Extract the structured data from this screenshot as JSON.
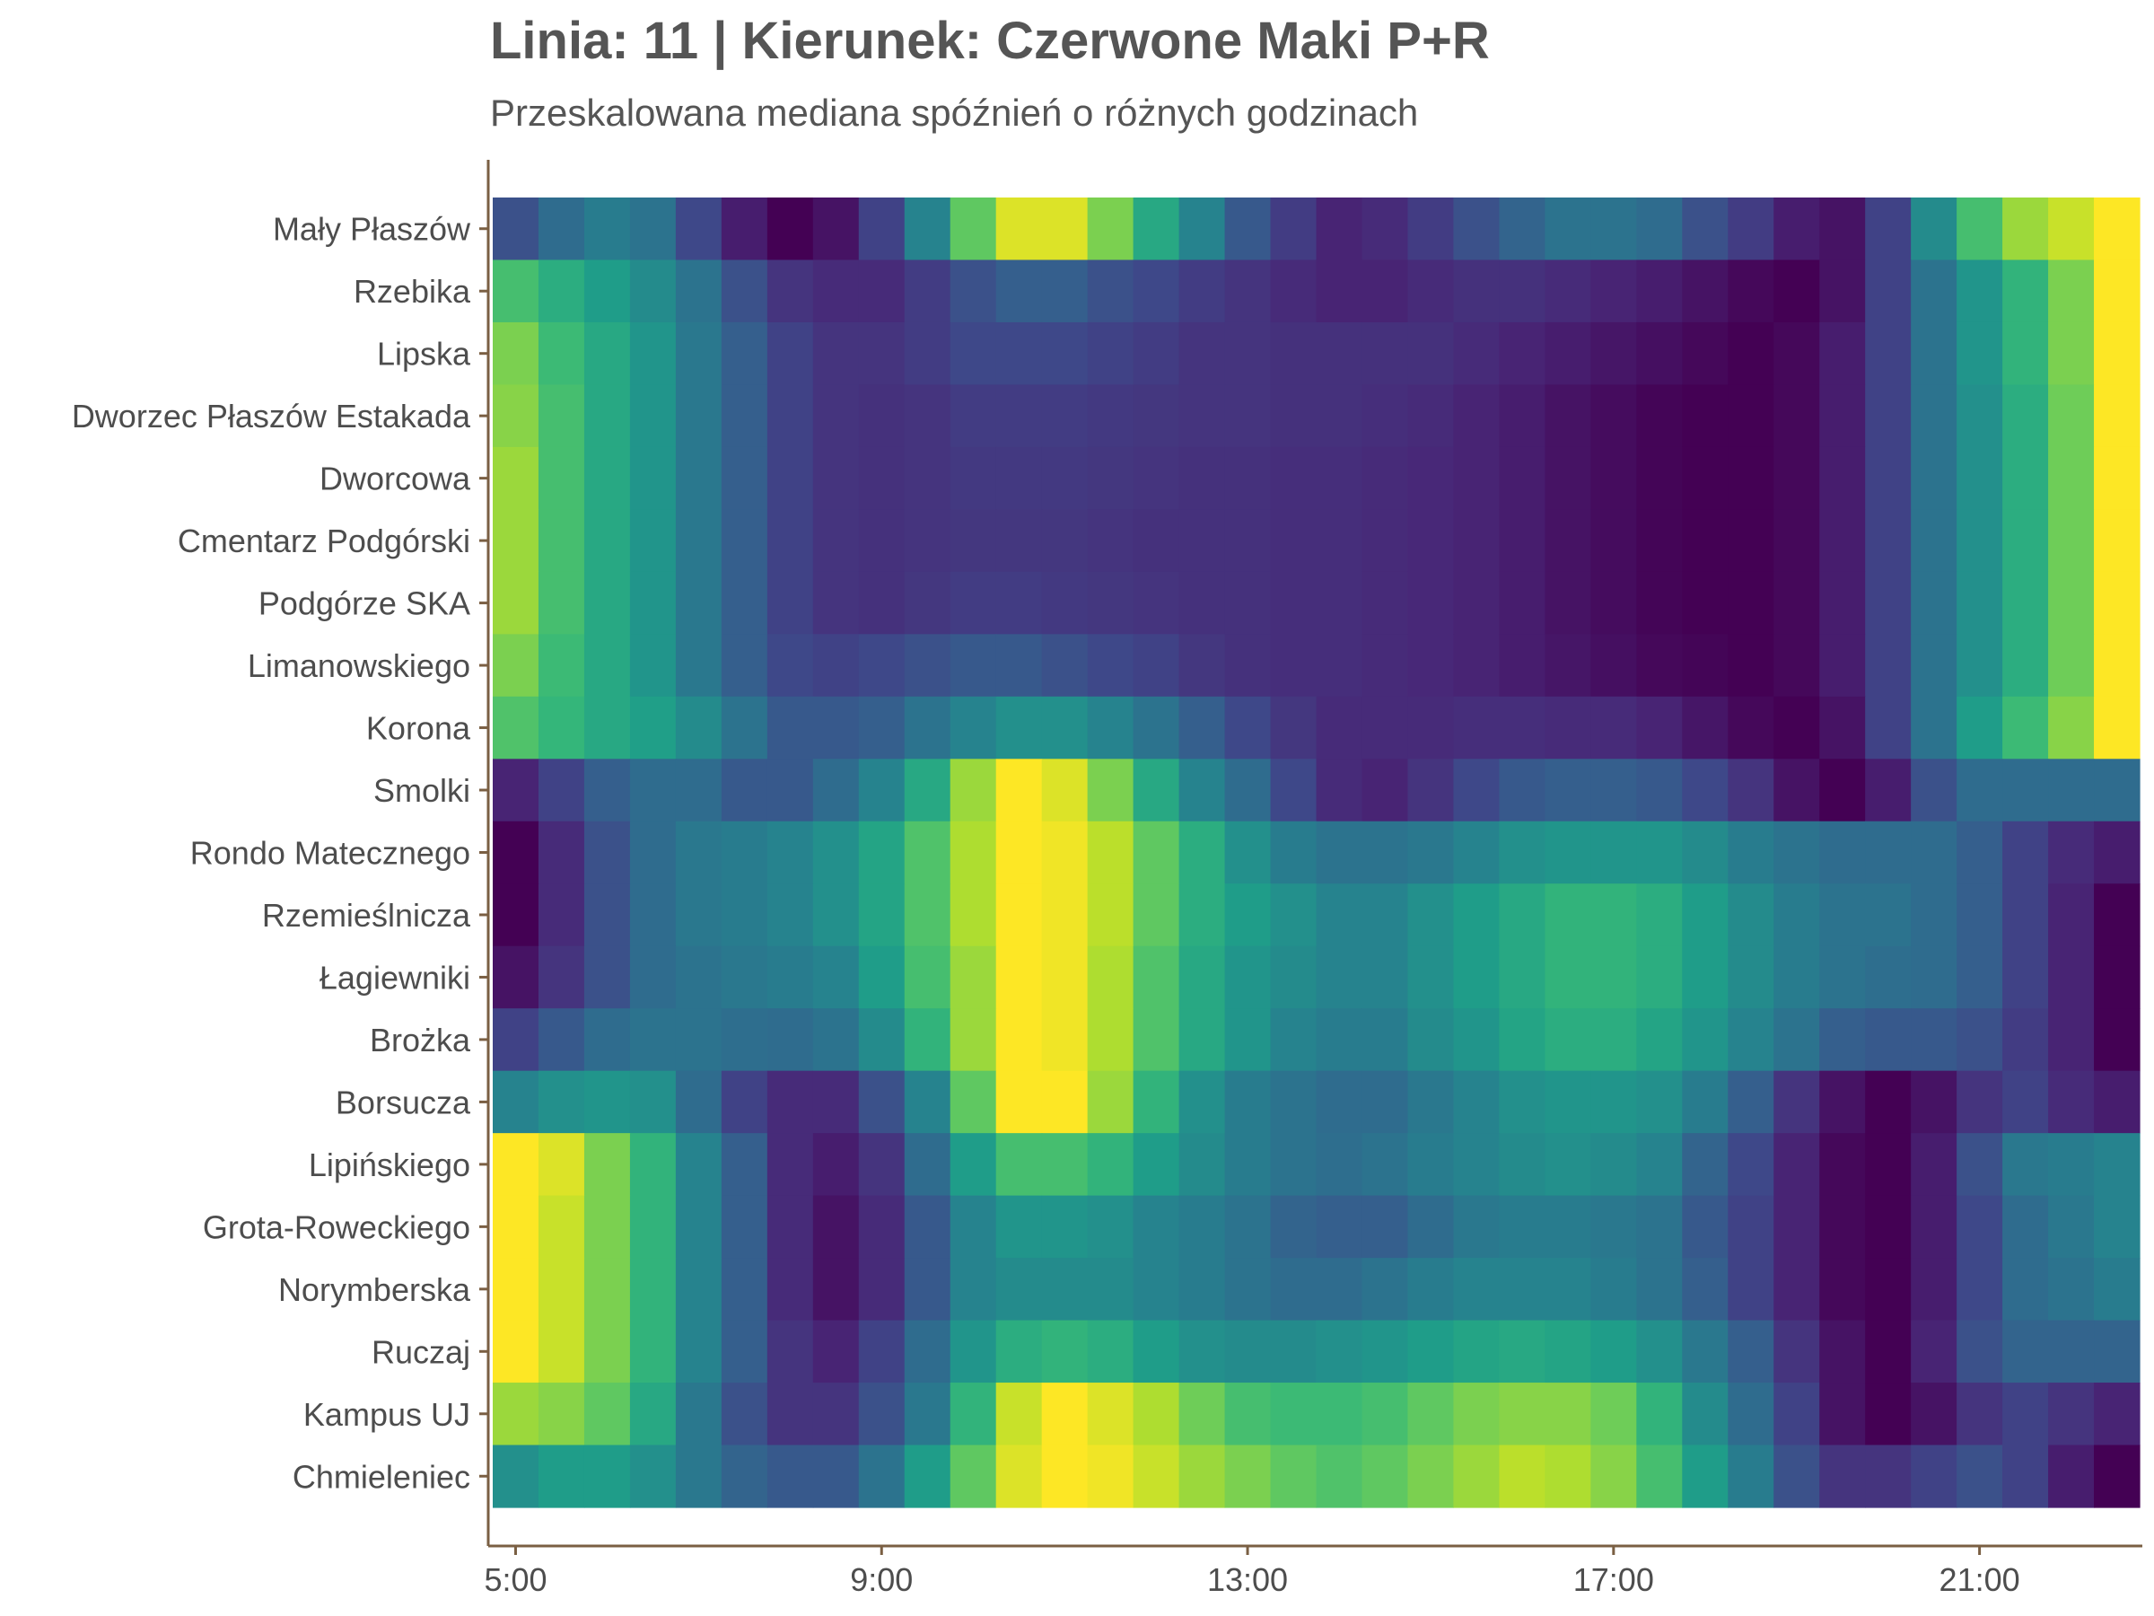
{
  "title": "Linia: 11 | Kierunek: Czerwone Maki P+R",
  "subtitle": "Przeskalowana mediana spóźnień o różnych godzinach",
  "chart_data": {
    "type": "heatmap",
    "colormap": "viridis",
    "value_range": [
      0,
      1
    ],
    "x_hours": [
      5,
      5.5,
      6,
      6.5,
      7,
      7.5,
      8,
      8.5,
      9,
      9.5,
      10,
      10.5,
      11,
      11.5,
      12,
      12.5,
      13,
      13.5,
      14,
      14.5,
      15,
      15.5,
      16,
      16.5,
      17,
      17.5,
      18,
      18.5,
      19,
      19.5,
      20,
      20.5,
      21,
      21.5,
      22,
      22.5
    ],
    "x_ticks": [
      5,
      9,
      13,
      17,
      21
    ],
    "x_tick_labels": [
      "5:00",
      "9:00",
      "13:00",
      "17:00",
      "21:00"
    ],
    "stops": [
      "Mały Płaszów",
      "Rzebika",
      "Lipska",
      "Dworzec Płaszów Estakada",
      "Dworcowa",
      "Cmentarz Podgórski",
      "Podgórze SKA",
      "Limanowskiego",
      "Korona",
      "Smolki",
      "Rondo Matecznego",
      "Rzemieślnicza",
      "Łagiewniki",
      "Brożka",
      "Borsucza",
      "Lipińskiego",
      "Grota-Roweckiego",
      "Norymberska",
      "Ruczaj",
      "Kampus UJ",
      "Chmieleniec"
    ],
    "values": [
      [
        0.25,
        0.35,
        0.42,
        0.38,
        0.22,
        0.08,
        0.0,
        0.05,
        0.2,
        0.45,
        0.75,
        0.95,
        0.95,
        0.8,
        0.6,
        0.45,
        0.28,
        0.18,
        0.1,
        0.12,
        0.18,
        0.25,
        0.32,
        0.38,
        0.38,
        0.35,
        0.25,
        0.18,
        0.08,
        0.05,
        0.2,
        0.48,
        0.7,
        0.85,
        0.92,
        1.0
      ],
      [
        0.7,
        0.62,
        0.55,
        0.48,
        0.38,
        0.25,
        0.15,
        0.12,
        0.12,
        0.18,
        0.25,
        0.3,
        0.3,
        0.25,
        0.22,
        0.18,
        0.15,
        0.12,
        0.1,
        0.1,
        0.12,
        0.14,
        0.14,
        0.12,
        0.1,
        0.08,
        0.05,
        0.02,
        0.0,
        0.05,
        0.2,
        0.38,
        0.52,
        0.65,
        0.8,
        1.0
      ],
      [
        0.8,
        0.68,
        0.6,
        0.52,
        0.4,
        0.3,
        0.2,
        0.15,
        0.15,
        0.18,
        0.22,
        0.22,
        0.22,
        0.2,
        0.18,
        0.15,
        0.15,
        0.14,
        0.14,
        0.14,
        0.14,
        0.12,
        0.1,
        0.08,
        0.06,
        0.04,
        0.02,
        0.0,
        0.02,
        0.08,
        0.2,
        0.38,
        0.52,
        0.65,
        0.8,
        1.0
      ],
      [
        0.82,
        0.7,
        0.6,
        0.52,
        0.4,
        0.3,
        0.2,
        0.15,
        0.14,
        0.15,
        0.18,
        0.18,
        0.18,
        0.17,
        0.16,
        0.15,
        0.15,
        0.14,
        0.14,
        0.13,
        0.12,
        0.1,
        0.08,
        0.05,
        0.03,
        0.01,
        0.0,
        0.0,
        0.02,
        0.08,
        0.2,
        0.38,
        0.5,
        0.62,
        0.78,
        1.0
      ],
      [
        0.85,
        0.7,
        0.6,
        0.52,
        0.4,
        0.3,
        0.2,
        0.15,
        0.14,
        0.15,
        0.17,
        0.17,
        0.17,
        0.16,
        0.15,
        0.14,
        0.14,
        0.13,
        0.13,
        0.12,
        0.11,
        0.1,
        0.08,
        0.05,
        0.03,
        0.01,
        0.0,
        0.0,
        0.02,
        0.08,
        0.2,
        0.38,
        0.5,
        0.62,
        0.78,
        1.0
      ],
      [
        0.85,
        0.7,
        0.6,
        0.52,
        0.4,
        0.3,
        0.2,
        0.15,
        0.14,
        0.15,
        0.16,
        0.16,
        0.16,
        0.15,
        0.14,
        0.14,
        0.14,
        0.13,
        0.13,
        0.12,
        0.11,
        0.1,
        0.08,
        0.05,
        0.03,
        0.01,
        0.0,
        0.0,
        0.02,
        0.08,
        0.2,
        0.38,
        0.5,
        0.62,
        0.78,
        1.0
      ],
      [
        0.85,
        0.7,
        0.6,
        0.52,
        0.4,
        0.3,
        0.2,
        0.15,
        0.14,
        0.16,
        0.18,
        0.18,
        0.17,
        0.16,
        0.15,
        0.14,
        0.14,
        0.13,
        0.13,
        0.12,
        0.11,
        0.1,
        0.08,
        0.05,
        0.03,
        0.01,
        0.0,
        0.0,
        0.02,
        0.08,
        0.2,
        0.38,
        0.5,
        0.62,
        0.78,
        1.0
      ],
      [
        0.8,
        0.68,
        0.6,
        0.52,
        0.4,
        0.3,
        0.22,
        0.2,
        0.22,
        0.25,
        0.28,
        0.28,
        0.25,
        0.22,
        0.2,
        0.16,
        0.14,
        0.13,
        0.13,
        0.12,
        0.11,
        0.1,
        0.08,
        0.06,
        0.04,
        0.02,
        0.01,
        0.0,
        0.02,
        0.08,
        0.2,
        0.38,
        0.5,
        0.62,
        0.78,
        1.0
      ],
      [
        0.72,
        0.66,
        0.6,
        0.56,
        0.48,
        0.38,
        0.28,
        0.28,
        0.3,
        0.38,
        0.45,
        0.5,
        0.5,
        0.45,
        0.38,
        0.3,
        0.22,
        0.16,
        0.12,
        0.12,
        0.12,
        0.13,
        0.13,
        0.12,
        0.12,
        0.1,
        0.06,
        0.02,
        0.0,
        0.05,
        0.2,
        0.38,
        0.55,
        0.68,
        0.82,
        1.0
      ],
      [
        0.1,
        0.2,
        0.3,
        0.35,
        0.35,
        0.28,
        0.28,
        0.35,
        0.45,
        0.6,
        0.85,
        1.0,
        0.95,
        0.8,
        0.6,
        0.45,
        0.35,
        0.22,
        0.12,
        0.1,
        0.15,
        0.22,
        0.28,
        0.3,
        0.3,
        0.28,
        0.22,
        0.15,
        0.05,
        0.0,
        0.08,
        0.25,
        0.35,
        0.35,
        0.35,
        0.35
      ],
      [
        0.0,
        0.12,
        0.25,
        0.35,
        0.4,
        0.42,
        0.45,
        0.5,
        0.58,
        0.72,
        0.88,
        1.0,
        0.98,
        0.9,
        0.75,
        0.62,
        0.5,
        0.42,
        0.38,
        0.38,
        0.4,
        0.45,
        0.5,
        0.52,
        0.52,
        0.52,
        0.48,
        0.42,
        0.38,
        0.35,
        0.35,
        0.35,
        0.3,
        0.2,
        0.12,
        0.08
      ],
      [
        0.0,
        0.12,
        0.25,
        0.35,
        0.4,
        0.42,
        0.45,
        0.5,
        0.58,
        0.72,
        0.88,
        1.0,
        0.98,
        0.9,
        0.75,
        0.62,
        0.55,
        0.5,
        0.45,
        0.45,
        0.5,
        0.55,
        0.6,
        0.65,
        0.65,
        0.62,
        0.55,
        0.48,
        0.42,
        0.38,
        0.38,
        0.35,
        0.3,
        0.2,
        0.1,
        0.0
      ],
      [
        0.05,
        0.15,
        0.25,
        0.35,
        0.38,
        0.4,
        0.42,
        0.45,
        0.55,
        0.7,
        0.85,
        1.0,
        0.98,
        0.88,
        0.72,
        0.6,
        0.52,
        0.48,
        0.45,
        0.45,
        0.5,
        0.55,
        0.6,
        0.65,
        0.65,
        0.62,
        0.55,
        0.48,
        0.42,
        0.38,
        0.36,
        0.35,
        0.3,
        0.2,
        0.1,
        0.0
      ],
      [
        0.2,
        0.28,
        0.35,
        0.38,
        0.38,
        0.36,
        0.35,
        0.38,
        0.48,
        0.65,
        0.85,
        1.0,
        0.98,
        0.88,
        0.72,
        0.6,
        0.52,
        0.45,
        0.42,
        0.42,
        0.48,
        0.52,
        0.58,
        0.62,
        0.62,
        0.58,
        0.52,
        0.45,
        0.38,
        0.3,
        0.28,
        0.28,
        0.25,
        0.18,
        0.1,
        0.0
      ],
      [
        0.45,
        0.5,
        0.52,
        0.5,
        0.35,
        0.2,
        0.12,
        0.12,
        0.25,
        0.45,
        0.75,
        1.0,
        1.0,
        0.85,
        0.65,
        0.5,
        0.42,
        0.38,
        0.35,
        0.35,
        0.4,
        0.45,
        0.5,
        0.52,
        0.52,
        0.5,
        0.42,
        0.3,
        0.15,
        0.05,
        0.0,
        0.05,
        0.15,
        0.2,
        0.12,
        0.08
      ],
      [
        1.0,
        0.95,
        0.8,
        0.65,
        0.45,
        0.3,
        0.12,
        0.08,
        0.15,
        0.35,
        0.55,
        0.7,
        0.7,
        0.65,
        0.55,
        0.48,
        0.42,
        0.38,
        0.36,
        0.38,
        0.42,
        0.45,
        0.48,
        0.5,
        0.48,
        0.45,
        0.32,
        0.22,
        0.1,
        0.02,
        0.0,
        0.08,
        0.25,
        0.4,
        0.42,
        0.45
      ],
      [
        1.0,
        0.92,
        0.8,
        0.65,
        0.45,
        0.3,
        0.12,
        0.05,
        0.12,
        0.28,
        0.45,
        0.52,
        0.52,
        0.5,
        0.45,
        0.42,
        0.38,
        0.32,
        0.3,
        0.3,
        0.35,
        0.4,
        0.42,
        0.42,
        0.4,
        0.38,
        0.28,
        0.2,
        0.1,
        0.02,
        0.0,
        0.08,
        0.22,
        0.35,
        0.4,
        0.45
      ],
      [
        1.0,
        0.92,
        0.8,
        0.65,
        0.45,
        0.3,
        0.12,
        0.05,
        0.12,
        0.28,
        0.45,
        0.48,
        0.48,
        0.48,
        0.45,
        0.42,
        0.38,
        0.35,
        0.35,
        0.38,
        0.42,
        0.45,
        0.45,
        0.45,
        0.42,
        0.38,
        0.3,
        0.2,
        0.1,
        0.02,
        0.0,
        0.08,
        0.22,
        0.35,
        0.38,
        0.42
      ],
      [
        1.0,
        0.92,
        0.8,
        0.65,
        0.45,
        0.3,
        0.15,
        0.1,
        0.2,
        0.35,
        0.52,
        0.62,
        0.65,
        0.62,
        0.55,
        0.5,
        0.48,
        0.48,
        0.5,
        0.52,
        0.55,
        0.58,
        0.6,
        0.58,
        0.55,
        0.5,
        0.4,
        0.3,
        0.15,
        0.05,
        0.0,
        0.1,
        0.25,
        0.32,
        0.32,
        0.32
      ],
      [
        0.85,
        0.82,
        0.75,
        0.6,
        0.4,
        0.25,
        0.15,
        0.15,
        0.25,
        0.4,
        0.65,
        0.92,
        1.0,
        0.95,
        0.88,
        0.78,
        0.7,
        0.68,
        0.68,
        0.7,
        0.75,
        0.8,
        0.82,
        0.82,
        0.78,
        0.65,
        0.48,
        0.35,
        0.2,
        0.05,
        0.0,
        0.05,
        0.15,
        0.2,
        0.15,
        0.1
      ],
      [
        0.5,
        0.55,
        0.55,
        0.5,
        0.4,
        0.32,
        0.28,
        0.28,
        0.38,
        0.55,
        0.75,
        0.95,
        1.0,
        0.98,
        0.92,
        0.85,
        0.8,
        0.75,
        0.72,
        0.75,
        0.8,
        0.85,
        0.9,
        0.88,
        0.82,
        0.7,
        0.55,
        0.42,
        0.25,
        0.15,
        0.15,
        0.2,
        0.25,
        0.2,
        0.08,
        0.0
      ]
    ]
  }
}
